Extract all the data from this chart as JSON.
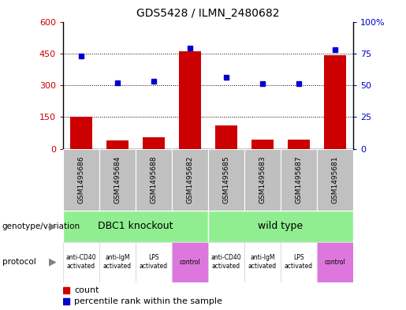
{
  "title": "GDS5428 / ILMN_2480682",
  "samples": [
    "GSM1495686",
    "GSM1495684",
    "GSM1495688",
    "GSM1495682",
    "GSM1495685",
    "GSM1495683",
    "GSM1495687",
    "GSM1495681"
  ],
  "counts": [
    150,
    40,
    55,
    460,
    110,
    45,
    45,
    440
  ],
  "percentiles": [
    73,
    52,
    53,
    79,
    56,
    51,
    51,
    78
  ],
  "ylim_left": [
    0,
    600
  ],
  "ylim_right": [
    0,
    100
  ],
  "yticks_left": [
    0,
    150,
    300,
    450,
    600
  ],
  "yticks_right": [
    0,
    25,
    50,
    75,
    100
  ],
  "ytick_labels_left": [
    "0",
    "150",
    "300",
    "450",
    "600"
  ],
  "ytick_labels_right": [
    "0",
    "25",
    "50",
    "75",
    "100%"
  ],
  "bar_color": "#cc0000",
  "dot_color": "#0000cc",
  "genotype_labels": [
    "DBC1 knockout",
    "wild type"
  ],
  "genotype_color": "#90ee90",
  "protocol_labels": [
    "anti-CD40\nactivated",
    "anti-IgM\nactivated",
    "LPS\nactivated",
    "control",
    "anti-CD40\nactivated",
    "anti-IgM\nactivated",
    "LPS\nactivated",
    "control"
  ],
  "protocol_colors": [
    "#ffffff",
    "#ffffff",
    "#ffffff",
    "#dd77dd",
    "#ffffff",
    "#ffffff",
    "#ffffff",
    "#dd77dd"
  ],
  "legend_count_label": "count",
  "legend_percentile_label": "percentile rank within the sample",
  "background_color": "#ffffff",
  "plot_bg_color": "#ffffff",
  "sample_bg_color": "#c0c0c0",
  "border_color": "#000000"
}
